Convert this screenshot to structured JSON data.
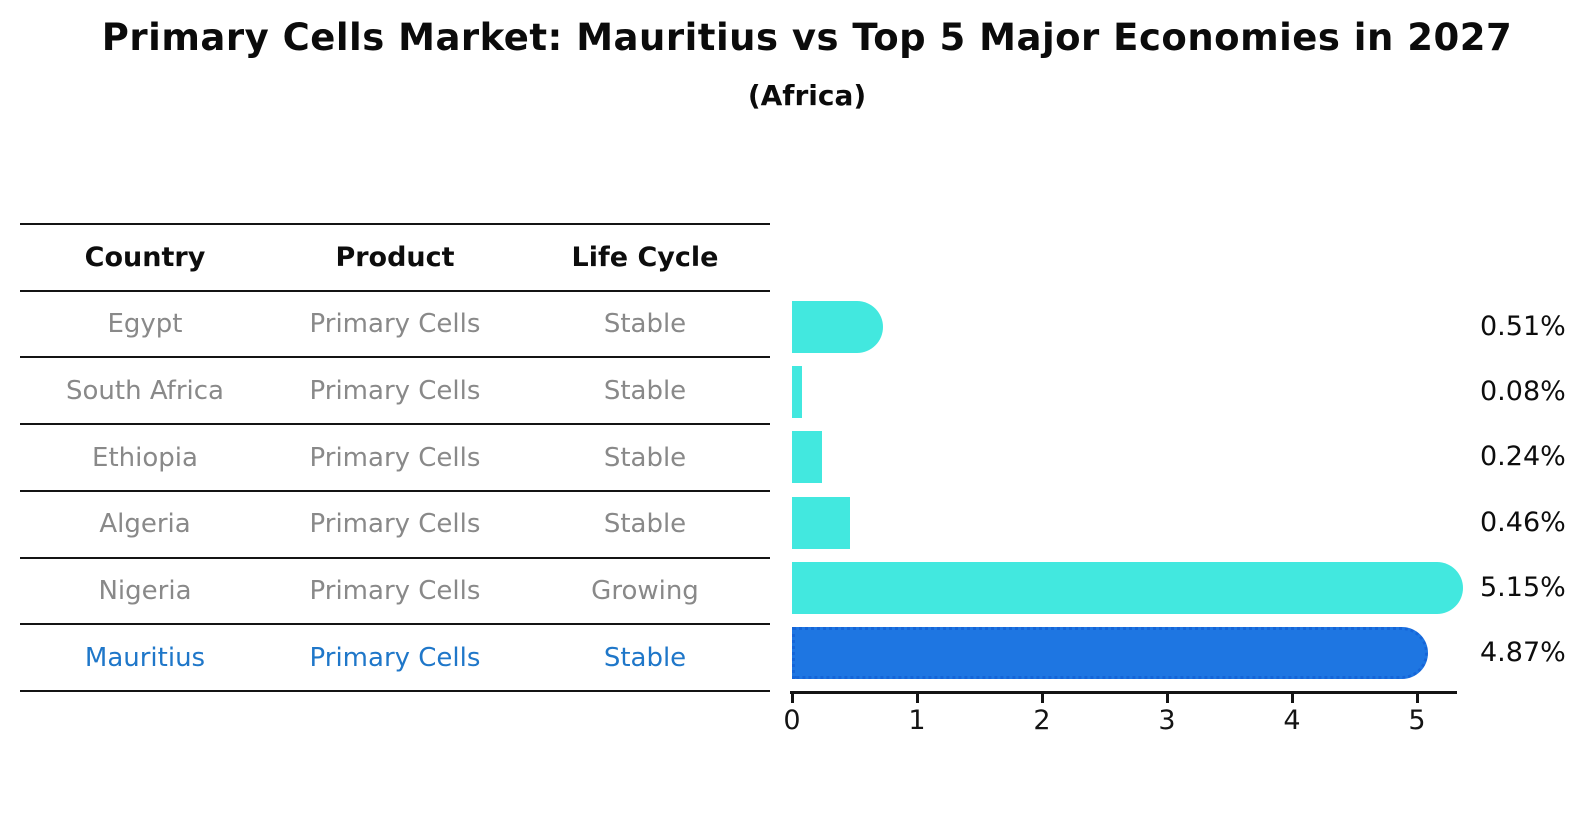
{
  "header": {
    "title": "Primary Cells Market: Mauritius vs Top 5 Major Economies in 2027",
    "subtitle": "(Africa)"
  },
  "table": {
    "headers": [
      "Country",
      "Product",
      "Life Cycle"
    ],
    "rows": [
      {
        "country": "Egypt",
        "product": "Primary Cells",
        "life_cycle": "Stable",
        "highlight": false
      },
      {
        "country": "South Africa",
        "product": "Primary Cells",
        "life_cycle": "Stable",
        "highlight": false
      },
      {
        "country": "Ethiopia",
        "product": "Primary Cells",
        "life_cycle": "Stable",
        "highlight": false
      },
      {
        "country": "Algeria",
        "product": "Primary Cells",
        "life_cycle": "Stable",
        "highlight": false
      },
      {
        "country": "Nigeria",
        "product": "Primary Cells",
        "life_cycle": "Growing",
        "highlight": false
      },
      {
        "country": "Mauritius",
        "product": "Primary Cells",
        "life_cycle": "Stable",
        "highlight": true
      }
    ]
  },
  "chart_data": {
    "type": "bar",
    "orientation": "horizontal",
    "title": "Primary Cells Market: Mauritius vs Top 5 Major Economies in 2027",
    "subtitle": "(Africa)",
    "categories": [
      "Egypt",
      "South Africa",
      "Ethiopia",
      "Algeria",
      "Nigeria",
      "Mauritius"
    ],
    "values": [
      0.51,
      0.08,
      0.24,
      0.46,
      5.15,
      4.87
    ],
    "value_labels": [
      "0.51%",
      "0.08%",
      "0.24%",
      "0.46%",
      "5.15%",
      "4.87%"
    ],
    "x_ticks": [
      "0",
      "1",
      "2",
      "3",
      "4",
      "5"
    ],
    "xlim": [
      0,
      5.5
    ],
    "grid": false,
    "legend_position": "none",
    "highlight_index": 5
  },
  "colors": {
    "bar_default": "#42e8df",
    "bar_highlight": "#1e76e2",
    "bar_highlight_border": "#1565d8",
    "table_text": "#898989",
    "table_highlight_text": "#1f77c9",
    "axis_text": "#141414",
    "title_text": "#0b0b0b"
  }
}
